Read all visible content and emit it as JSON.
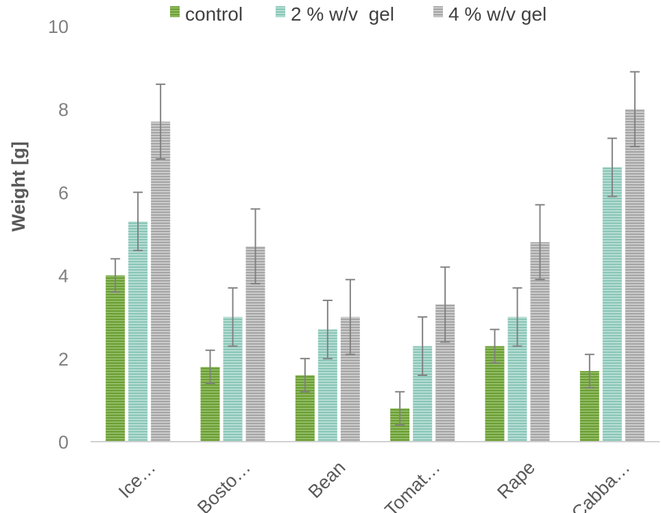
{
  "chart_data": {
    "type": "bar",
    "title": "",
    "xlabel": "",
    "ylabel": "Weight [g]",
    "ylim": [
      0,
      10
    ],
    "yticks": [
      0,
      2,
      4,
      6,
      8,
      10
    ],
    "grid": false,
    "legend_position": "top",
    "categories": [
      "Ice…",
      "Bosto…",
      "Bean",
      "Tomat…",
      "Rape",
      "Cabba…"
    ],
    "series": [
      {
        "name": "control",
        "color": "#70a23a",
        "values": [
          4.0,
          1.8,
          1.6,
          0.8,
          2.3,
          1.7
        ],
        "errors": [
          0.4,
          0.4,
          0.4,
          0.4,
          0.4,
          0.4
        ]
      },
      {
        "name": "2 % w/v  gel",
        "color": "#8fc9bb",
        "values": [
          5.3,
          3.0,
          2.7,
          2.3,
          3.0,
          6.6
        ],
        "errors": [
          0.7,
          0.7,
          0.7,
          0.7,
          0.7,
          0.7
        ]
      },
      {
        "name": "4 % w/v gel",
        "color": "#b3b3b3",
        "values": [
          7.7,
          4.7,
          3.0,
          3.3,
          4.8,
          8.0
        ],
        "errors": [
          0.9,
          0.9,
          0.9,
          0.9,
          0.9,
          0.9
        ]
      }
    ]
  }
}
